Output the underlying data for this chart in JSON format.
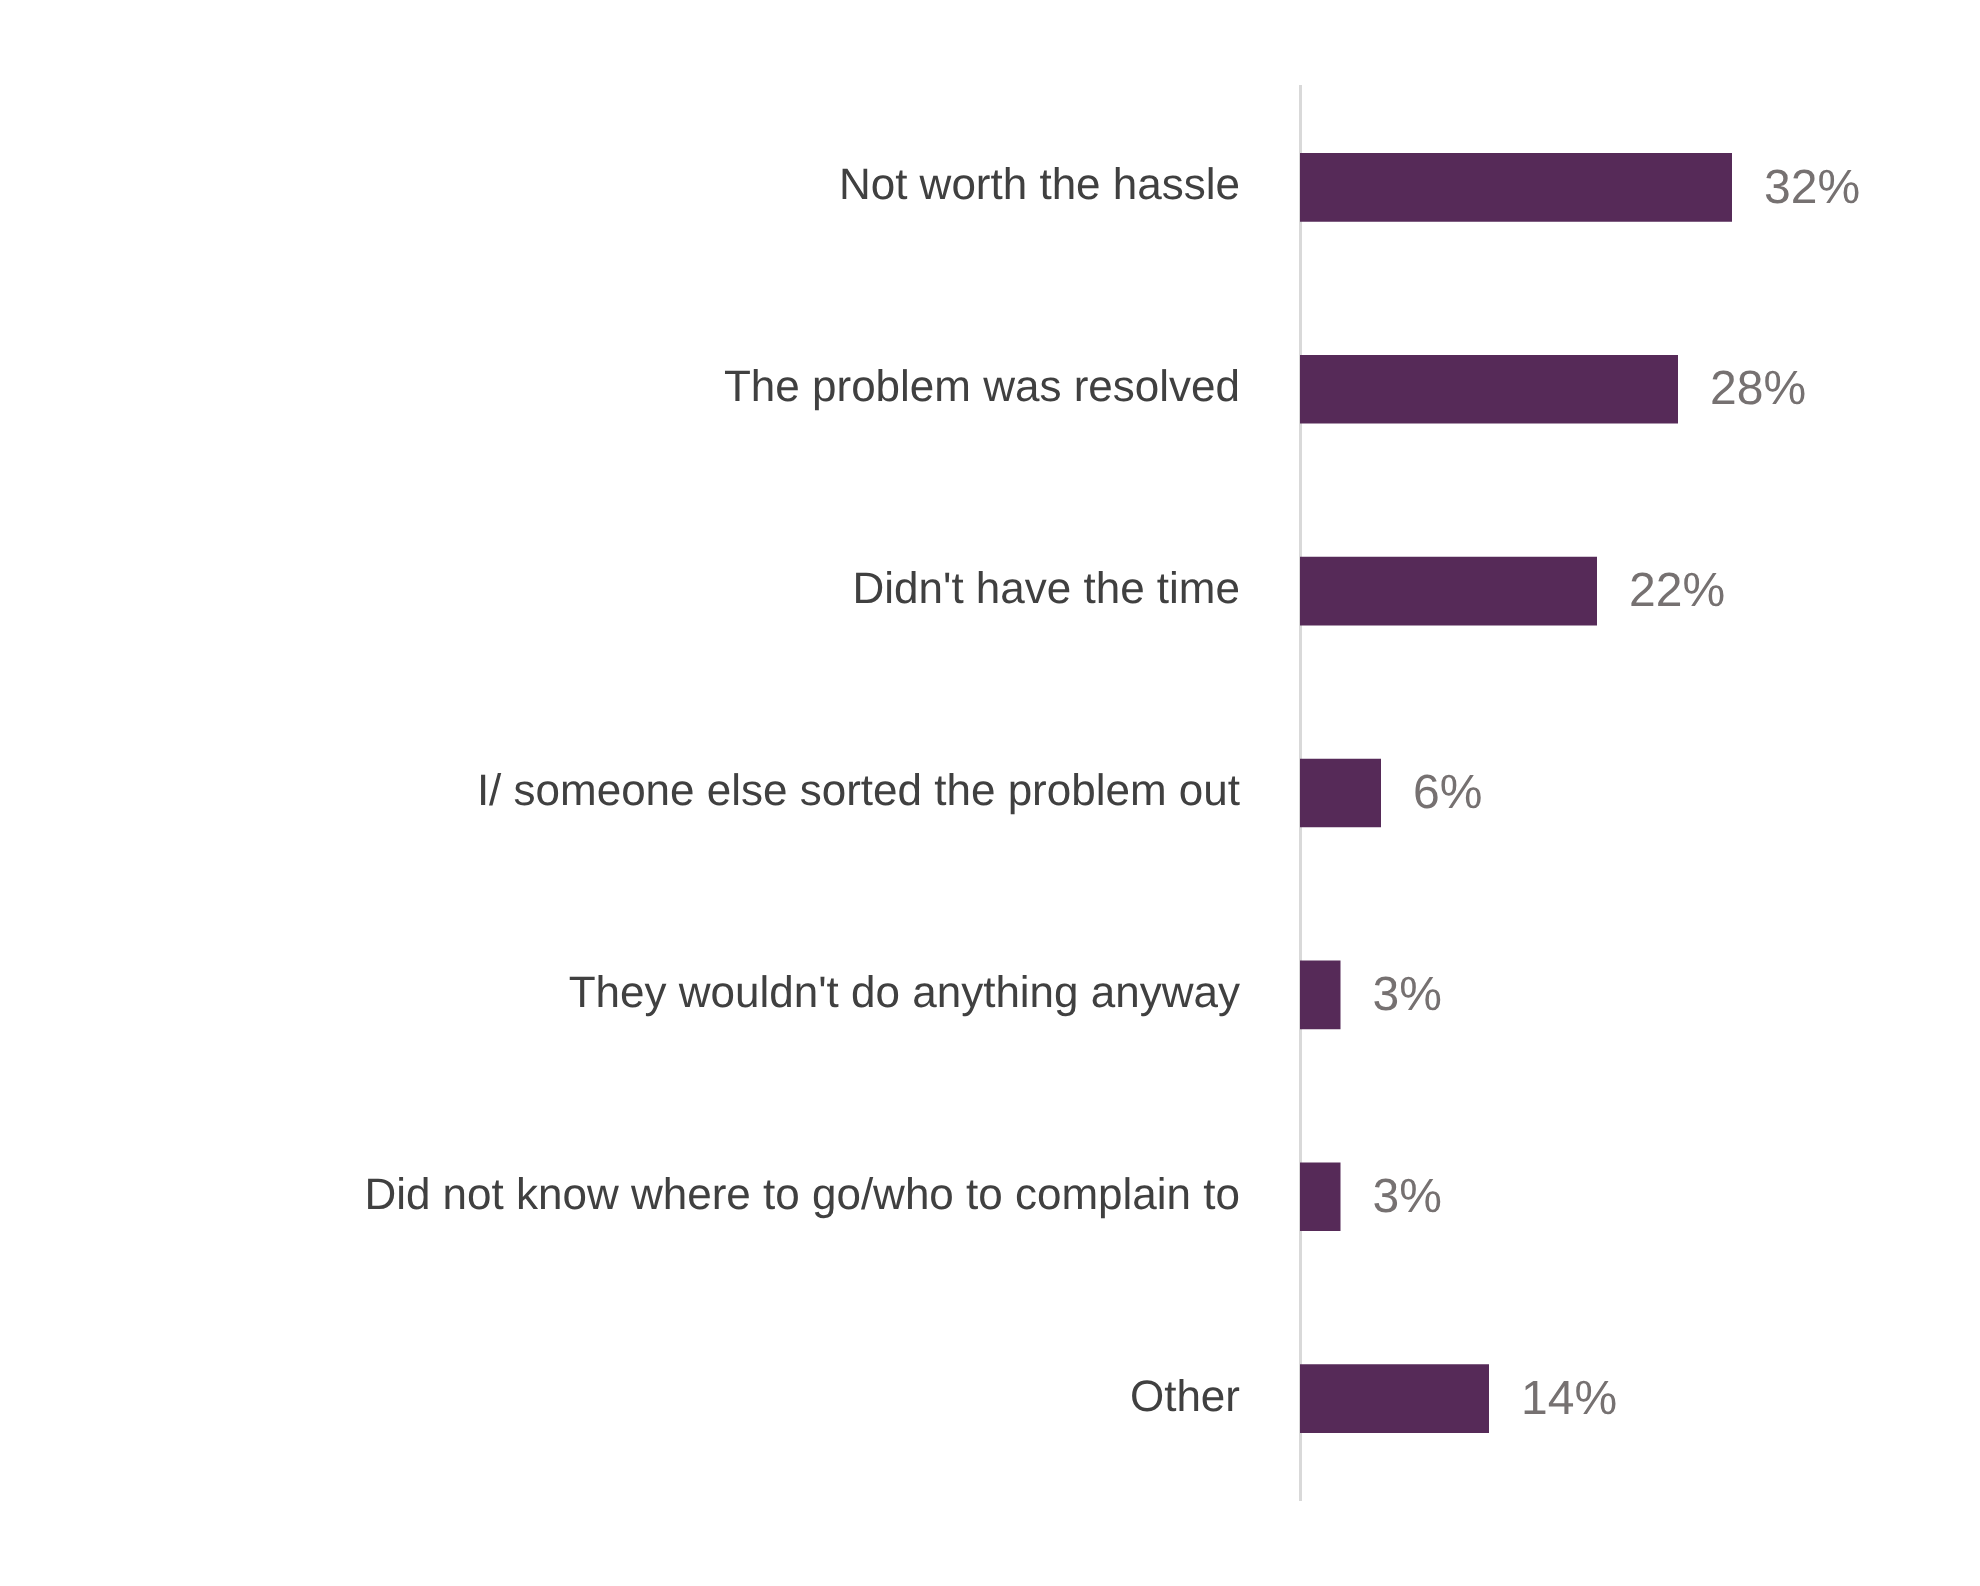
{
  "chart_data": {
    "type": "bar",
    "orientation": "horizontal",
    "categories": [
      "Not worth the hassle",
      "The problem was resolved",
      "Didn't have the time",
      "I/ someone else sorted the problem out",
      "They wouldn't do anything anyway",
      "Did not know where to go/who to complain to",
      "Other"
    ],
    "values": [
      32,
      28,
      22,
      6,
      3,
      3,
      14
    ],
    "value_labels": [
      "32%",
      "28%",
      "22%",
      "6%",
      "3%",
      "3%",
      "14%"
    ],
    "color": "#562a58",
    "tick_labels": "y"
  }
}
